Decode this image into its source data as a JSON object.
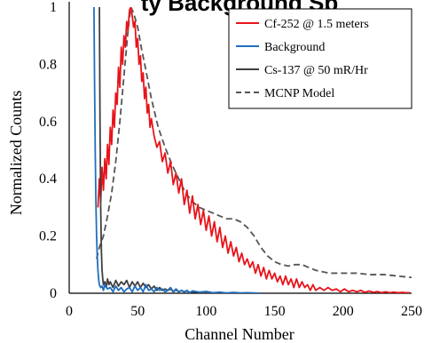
{
  "chart_data": {
    "type": "line",
    "title": "ty Background Sp",
    "xlabel": "Channel Number",
    "ylabel": "Normalized Counts",
    "xlim": [
      0,
      250
    ],
    "ylim": [
      0,
      1.0
    ],
    "x_ticks": [
      "0",
      "50",
      "100",
      "150",
      "200",
      "250"
    ],
    "y_ticks": [
      "0",
      "0.2",
      "0.4",
      "0.6",
      "0.8",
      "1"
    ],
    "legend_position": "top-right",
    "series": [
      {
        "name": "Cf-252 @ 1.5 meters",
        "color": "#e8141a",
        "style": "solid",
        "x": [
          21,
          22,
          23,
          24,
          25,
          26,
          27,
          28,
          29,
          30,
          31,
          32,
          33,
          34,
          35,
          36,
          37,
          38,
          39,
          40,
          41,
          42,
          43,
          44,
          45,
          46,
          47,
          48,
          49,
          50,
          51,
          52,
          53,
          54,
          55,
          56,
          57,
          58,
          59,
          60,
          62,
          64,
          66,
          68,
          70,
          72,
          74,
          76,
          78,
          80,
          82,
          84,
          86,
          88,
          90,
          92,
          94,
          96,
          98,
          100,
          102,
          104,
          106,
          108,
          110,
          112,
          114,
          116,
          118,
          120,
          122,
          124,
          126,
          128,
          130,
          132,
          134,
          136,
          138,
          140,
          142,
          144,
          146,
          148,
          150,
          152,
          154,
          156,
          158,
          160,
          162,
          164,
          166,
          168,
          170,
          172,
          174,
          176,
          178,
          180,
          183,
          186,
          189,
          192,
          195,
          198,
          201,
          204,
          207,
          210,
          213,
          216,
          219,
          222,
          225,
          228,
          231,
          234,
          237,
          240,
          243,
          246,
          249
        ],
        "y": [
          0.3,
          0.4,
          0.32,
          0.44,
          0.36,
          0.47,
          0.4,
          0.52,
          0.45,
          0.58,
          0.52,
          0.64,
          0.58,
          0.7,
          0.66,
          0.79,
          0.72,
          0.86,
          0.8,
          0.9,
          0.86,
          0.95,
          0.92,
          0.99,
          1.0,
          0.97,
          0.93,
          0.95,
          0.86,
          0.89,
          0.8,
          0.83,
          0.74,
          0.77,
          0.68,
          0.72,
          0.63,
          0.66,
          0.58,
          0.61,
          0.55,
          0.51,
          0.53,
          0.46,
          0.49,
          0.42,
          0.46,
          0.38,
          0.42,
          0.35,
          0.4,
          0.31,
          0.36,
          0.28,
          0.34,
          0.26,
          0.31,
          0.24,
          0.29,
          0.22,
          0.27,
          0.2,
          0.25,
          0.18,
          0.23,
          0.16,
          0.2,
          0.14,
          0.18,
          0.13,
          0.16,
          0.11,
          0.14,
          0.1,
          0.12,
          0.09,
          0.11,
          0.07,
          0.1,
          0.06,
          0.09,
          0.05,
          0.08,
          0.05,
          0.07,
          0.04,
          0.06,
          0.03,
          0.06,
          0.03,
          0.05,
          0.02,
          0.05,
          0.02,
          0.04,
          0.02,
          0.03,
          0.01,
          0.03,
          0.01,
          0.02,
          0.01,
          0.02,
          0.01,
          0.015,
          0.005,
          0.015,
          0.005,
          0.01,
          0.005,
          0.01,
          0.003,
          0.008,
          0.003,
          0.006,
          0.002,
          0.005,
          0.002,
          0.004,
          0.002,
          0.003,
          0.002,
          0.002
        ]
      },
      {
        "name": "Background",
        "color": "#1f6fbf",
        "style": "solid",
        "x": [
          18,
          18.5,
          19,
          19.5,
          20,
          20.5,
          21,
          21.5,
          22,
          23,
          24,
          25,
          26,
          28,
          30,
          32,
          34,
          36,
          38,
          40,
          42,
          44,
          46,
          48,
          50,
          52,
          54,
          56,
          58,
          60,
          62,
          64,
          66,
          68,
          70,
          72,
          74,
          76,
          78,
          80,
          82,
          84,
          86,
          88,
          90,
          95,
          100,
          105,
          110,
          115,
          120,
          125,
          130,
          135,
          140
        ],
        "y": [
          1.05,
          0.75,
          0.5,
          0.32,
          0.2,
          0.13,
          0.08,
          0.05,
          0.03,
          0.02,
          0.025,
          0.01,
          0.03,
          0.015,
          0.02,
          0.005,
          0.025,
          0.01,
          0.02,
          0.005,
          0.015,
          0.02,
          0.005,
          0.025,
          0.01,
          0.02,
          0.005,
          0.03,
          0.01,
          0.015,
          0.005,
          0.02,
          0.01,
          0.015,
          0.005,
          0.01,
          0.02,
          0.005,
          0.015,
          0.005,
          0.01,
          0.005,
          0.01,
          0.002,
          0.008,
          0.004,
          0.006,
          0.002,
          0.004,
          0.001,
          0.003,
          0.001,
          0.002,
          0.001,
          0.0
        ]
      },
      {
        "name": "Cs-137 @ 50 mR/Hr",
        "color": "#404040",
        "style": "solid",
        "x": [
          22,
          22.5,
          23,
          23.5,
          24,
          24.5,
          25,
          26,
          27,
          28,
          29,
          30,
          32,
          34,
          36,
          38,
          40,
          42,
          44,
          46,
          48,
          50,
          52,
          54,
          56,
          58,
          60,
          62,
          64,
          66,
          68,
          70,
          72,
          74,
          76,
          78,
          80,
          82,
          84,
          86,
          88,
          90,
          95,
          100,
          105,
          110
        ],
        "y": [
          1.05,
          0.6,
          0.3,
          0.15,
          0.08,
          0.05,
          0.03,
          0.04,
          0.02,
          0.05,
          0.03,
          0.04,
          0.02,
          0.045,
          0.025,
          0.04,
          0.03,
          0.045,
          0.02,
          0.04,
          0.025,
          0.04,
          0.02,
          0.035,
          0.02,
          0.03,
          0.015,
          0.025,
          0.01,
          0.02,
          0.01,
          0.015,
          0.01,
          0.015,
          0.005,
          0.012,
          0.005,
          0.01,
          0.005,
          0.008,
          0.003,
          0.005,
          0.003,
          0.002,
          0.002,
          0.001
        ]
      },
      {
        "name": "MCNP Model",
        "color": "#555555",
        "style": "dashed",
        "x": [
          20,
          22,
          25,
          28,
          31,
          34,
          37,
          40,
          43,
          45,
          47,
          50,
          53,
          56,
          60,
          65,
          70,
          75,
          80,
          85,
          90,
          95,
          100,
          105,
          110,
          115,
          120,
          125,
          130,
          135,
          140,
          145,
          150,
          155,
          160,
          165,
          170,
          175,
          180,
          190,
          200,
          210,
          220,
          230,
          240,
          250
        ],
        "y": [
          0.12,
          0.16,
          0.2,
          0.27,
          0.35,
          0.46,
          0.6,
          0.76,
          0.92,
          1.0,
          0.98,
          0.93,
          0.85,
          0.78,
          0.68,
          0.58,
          0.51,
          0.45,
          0.4,
          0.35,
          0.32,
          0.3,
          0.29,
          0.28,
          0.27,
          0.26,
          0.26,
          0.25,
          0.23,
          0.2,
          0.16,
          0.13,
          0.11,
          0.1,
          0.095,
          0.1,
          0.1,
          0.09,
          0.08,
          0.07,
          0.07,
          0.07,
          0.065,
          0.065,
          0.06,
          0.055
        ]
      }
    ]
  }
}
